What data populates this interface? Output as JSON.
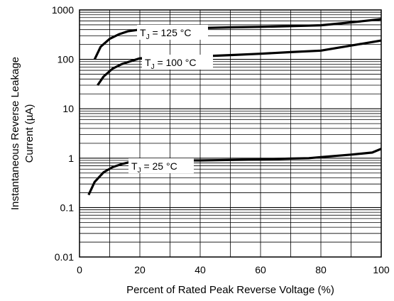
{
  "chart_data": {
    "type": "line",
    "title": "",
    "xlabel": "Percent of Rated Peak Reverse Voltage (%)",
    "ylabel_lines": [
      "Instantaneous Reverse Leakage",
      "Current (µA)"
    ],
    "xlim": [
      0,
      100
    ],
    "ylim": [
      0.01,
      1000
    ],
    "y_scale": "log",
    "grid": true,
    "x_ticks": [
      0,
      20,
      40,
      60,
      80,
      100
    ],
    "y_ticks": [
      {
        "value": 0.01,
        "label": "0.01"
      },
      {
        "value": 0.1,
        "label": "0.1"
      },
      {
        "value": 1,
        "label": "1"
      },
      {
        "value": 10,
        "label": "10"
      },
      {
        "value": 100,
        "label": "100"
      },
      {
        "value": 1000,
        "label": "1000"
      }
    ],
    "series": [
      {
        "label_main": "T",
        "label_sub": "J",
        "label_rest": " = 125 °C",
        "x": [
          5,
          7,
          10,
          13,
          16,
          20,
          30,
          40,
          50,
          60,
          70,
          80,
          90,
          100
        ],
        "y": [
          100,
          180,
          260,
          320,
          370,
          400,
          420,
          430,
          445,
          455,
          470,
          490,
          560,
          650
        ]
      },
      {
        "label_main": "T",
        "label_sub": "J",
        "label_rest": " = 100 °C",
        "x": [
          6,
          8,
          11,
          14,
          17,
          20,
          30,
          40,
          50,
          60,
          70,
          80,
          90,
          100
        ],
        "y": [
          30,
          45,
          65,
          80,
          92,
          105,
          108,
          115,
          122,
          130,
          140,
          150,
          190,
          240
        ]
      },
      {
        "label_main": "T",
        "label_sub": "J",
        "label_rest": " = 25 °C",
        "x": [
          3,
          5,
          8,
          11,
          14,
          17,
          20,
          30,
          40,
          50,
          60,
          70,
          76,
          80,
          90,
          97,
          100
        ],
        "y": [
          0.18,
          0.33,
          0.52,
          0.66,
          0.76,
          0.84,
          0.9,
          0.9,
          0.9,
          0.92,
          0.94,
          0.98,
          1.0,
          1.05,
          1.18,
          1.3,
          1.55
        ]
      }
    ]
  }
}
